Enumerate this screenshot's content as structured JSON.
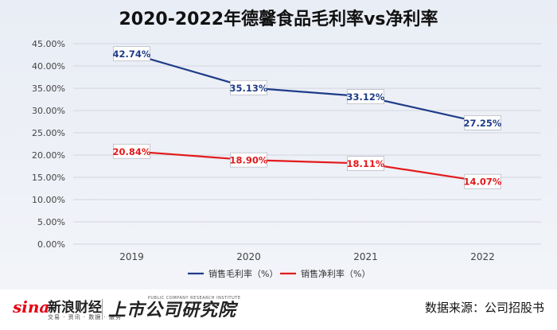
{
  "chart_data": {
    "type": "line",
    "title": "2020-2022年德馨食品毛利率vs净利率",
    "categories": [
      "2019",
      "2020",
      "2021",
      "2022"
    ],
    "series": [
      {
        "name": "销售毛利率（%）",
        "color": "#1f3c88",
        "values": [
          42.74,
          35.13,
          33.12,
          27.25
        ],
        "labels": [
          "42.74%",
          "35.13%",
          "33.12%",
          "27.25%"
        ]
      },
      {
        "name": "销售净利率（%）",
        "color": "#e31a1c",
        "values": [
          20.84,
          18.9,
          18.11,
          14.07
        ],
        "labels": [
          "20.84%",
          "18.90%",
          "18.11%",
          "14.07%"
        ]
      }
    ],
    "ylim": [
      0,
      45
    ],
    "yticks": [
      0,
      5,
      10,
      15,
      20,
      25,
      30,
      35,
      40,
      45
    ],
    "ytick_labels": [
      "0.00%",
      "5.00%",
      "10.00%",
      "15.00%",
      "20.00%",
      "25.00%",
      "30.00%",
      "35.00%",
      "40.00%",
      "45.00%"
    ],
    "grid": true,
    "legend": "bottom"
  },
  "footer": {
    "sina_logo": "sina",
    "sina_name": "新浪财经",
    "sina_tagline": "交易 · 资讯 · 数据 · 服务",
    "institute_name": "上市公司研究院",
    "institute_en": "PUBLIC COMPANY RESEARCH INSTITUTE",
    "source": "数据来源：公司招股书"
  }
}
